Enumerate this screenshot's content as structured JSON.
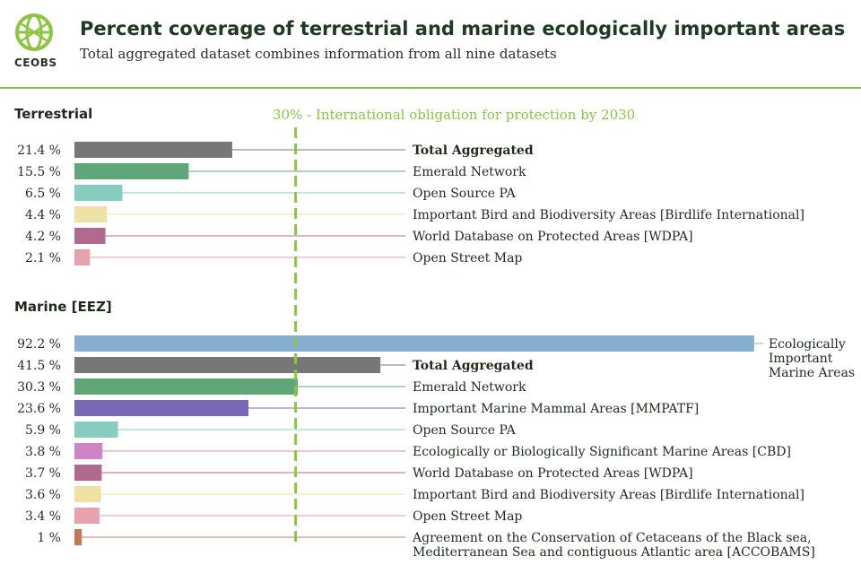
{
  "header": {
    "logo_text": "CEOBS",
    "title": "Percent coverage of terrestrial and marine ecologically important areas",
    "subtitle": "Total aggregated dataset combines information from all nine datasets"
  },
  "reference_line": {
    "value": 30,
    "label": "30% - International obligation for protection by 2030",
    "color": "#8cc63f"
  },
  "chart_data": [
    {
      "type": "bar",
      "orientation": "horizontal",
      "title": "Terrestrial",
      "xlim": [
        0,
        100
      ],
      "grid": false,
      "categories": [
        "Total Aggregated",
        "Emerald Network",
        "Open Source PA",
        "Important Bird and Biodiversity Areas [Birdlife International]",
        "World Database on Protected Areas [WDPA]",
        "Open Street Map"
      ],
      "values": [
        21.4,
        15.5,
        6.5,
        4.4,
        4.2,
        2.1
      ],
      "value_labels": [
        "21.4 %",
        "15.5 %",
        "6.5 %",
        "4.4 %",
        "4.2 %",
        "2.1 %"
      ],
      "colors": [
        "#777777",
        "#5fa678",
        "#86cdc0",
        "#ede1a6",
        "#b06a8e",
        "#e4a3ad"
      ],
      "bold": [
        true,
        false,
        false,
        false,
        false,
        false
      ]
    },
    {
      "type": "bar",
      "orientation": "horizontal",
      "title": "Marine [EEZ]",
      "xlim": [
        0,
        100
      ],
      "grid": false,
      "categories": [
        "Ecologically Important Marine Areas",
        "Total Aggregated",
        "Emerald Network",
        "Important Marine Mammal Areas [MMPATF]",
        "Open Source PA",
        "Ecologically or Biologically Significant Marine Areas [CBD]",
        "World Database on Protected Areas [WDPA]",
        "Important Bird and Biodiversity Areas [Birdlife International]",
        "Open Street Map",
        "Agreement on the Conservation of Cetaceans of the Black sea, Mediterranean Sea and contiguous Atlantic area [ACCOBAMS]"
      ],
      "label_lines": [
        [
          "Ecologically",
          "Important",
          "Marine Areas"
        ],
        [
          "Total Aggregated"
        ],
        [
          "Emerald Network"
        ],
        [
          "Important Marine Mammal Areas [MMPATF]"
        ],
        [
          "Open Source PA"
        ],
        [
          "Ecologically or Biologically Significant Marine Areas [CBD]"
        ],
        [
          "World Database on Protected Areas [WDPA]"
        ],
        [
          "Important Bird and Biodiversity Areas [Birdlife International]"
        ],
        [
          "Open Street Map"
        ],
        [
          "Agreement on the Conservation of Cetaceans of the Black sea,",
          "Mediterranean Sea and contiguous Atlantic area [ACCOBAMS]"
        ]
      ],
      "values": [
        92.2,
        41.5,
        30.3,
        23.6,
        5.9,
        3.8,
        3.7,
        3.6,
        3.4,
        1
      ],
      "value_labels": [
        "92.2 %",
        "41.5 %",
        "30.3 %",
        "23.6 %",
        "5.9 %",
        "3.8 %",
        "3.7 %",
        "3.6 %",
        "3.4 %",
        "1 %"
      ],
      "colors": [
        "#85aed0",
        "#777777",
        "#5fa678",
        "#7868b5",
        "#86cdc0",
        "#cf84c6",
        "#b06a8e",
        "#ede1a6",
        "#e4a3ad",
        "#bf7b58"
      ],
      "bold": [
        false,
        true,
        false,
        false,
        false,
        false,
        false,
        false,
        false,
        false
      ]
    }
  ]
}
